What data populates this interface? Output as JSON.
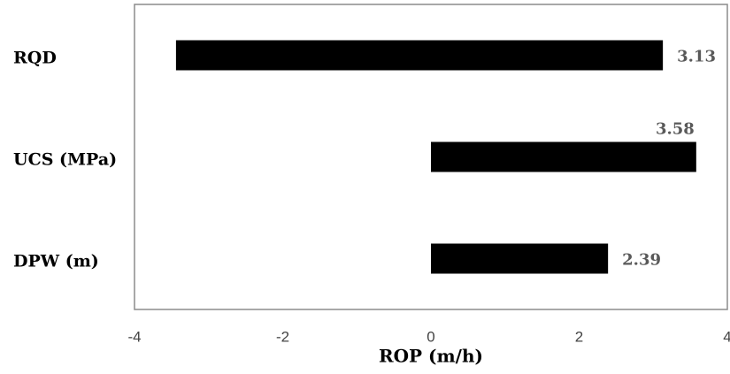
{
  "chart_data": {
    "type": "floating-bar",
    "orientation": "horizontal",
    "categories": [
      "RQD",
      "UCS (MPa)",
      "DPW (m)"
    ],
    "starts": [
      -3.44,
      0,
      0
    ],
    "values": [
      3.13,
      3.58,
      2.39
    ],
    "color": "#000000",
    "xlabel": "ROP (m/h)",
    "xlim": [
      -4,
      4
    ],
    "xticks": [
      -4,
      -2,
      0,
      2,
      4
    ],
    "grid": false
  }
}
